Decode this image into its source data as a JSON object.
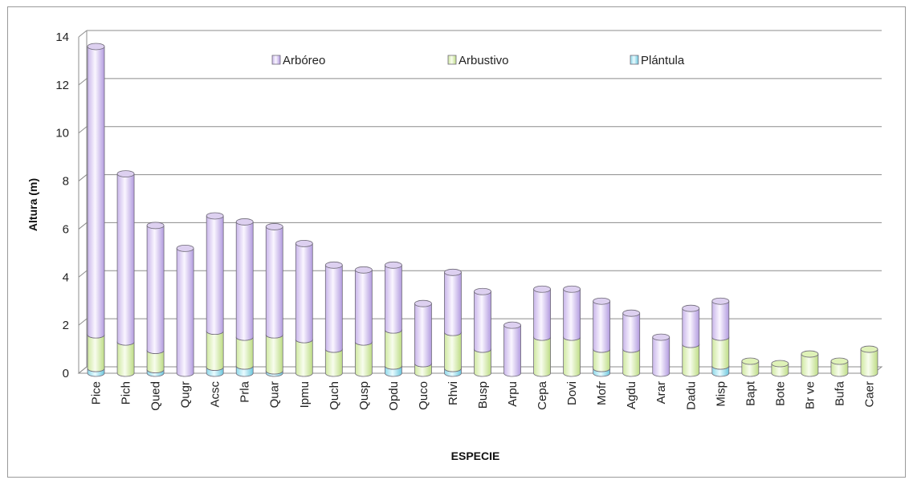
{
  "chart_data": {
    "type": "bar",
    "stacked": true,
    "title": "",
    "xlabel": "ESPECIE",
    "ylabel": "Altura (m)",
    "ylim": [
      0,
      14
    ],
    "yticks": [
      0,
      2,
      4,
      6,
      8,
      10,
      12,
      14
    ],
    "grid": true,
    "legend_position": "top",
    "categories": [
      "Pice",
      "Pich",
      "Qued",
      "Qugr",
      "Acsc",
      "Prla",
      "Quar",
      "Ipmu",
      "Quch",
      "Qusp",
      "Opdu",
      "Quco",
      "Rhvi",
      "Busp",
      "Arpu",
      "Cepa",
      "Dovi",
      "Mofr",
      "Agdu",
      "Arar",
      "Dadu",
      "Misp",
      "Bapt",
      "Bote",
      "Br ve",
      "Bufa",
      "Caer"
    ],
    "series": [
      {
        "name": "Plántula",
        "color": "#9fe4f0",
        "values": [
          0.2,
          0,
          0.15,
          0,
          0.25,
          0.3,
          0.1,
          0,
          0,
          0,
          0.3,
          0,
          0.2,
          0,
          0,
          0,
          0,
          0.2,
          0,
          0,
          0,
          0.3,
          0,
          0,
          0,
          0,
          0
        ]
      },
      {
        "name": "Arbustivo",
        "color": "#dff2b8",
        "values": [
          1.4,
          1.3,
          0.8,
          0,
          1.5,
          1.2,
          1.5,
          1.4,
          1.0,
          1.3,
          1.5,
          0.4,
          1.5,
          1.0,
          0,
          1.5,
          1.5,
          0.8,
          1.0,
          0,
          1.2,
          1.2,
          0.5,
          0.4,
          0.8,
          0.5,
          1.0
        ]
      },
      {
        "name": "Arbóreo",
        "color": "#ddd0f0",
        "values": [
          12.0,
          7.0,
          5.2,
          5.2,
          4.8,
          4.8,
          4.5,
          4.0,
          3.5,
          3.0,
          2.7,
          2.5,
          2.5,
          2.4,
          2.0,
          2.0,
          2.0,
          2.0,
          1.5,
          1.5,
          1.5,
          1.5,
          0,
          0,
          0,
          0,
          0
        ]
      }
    ]
  }
}
